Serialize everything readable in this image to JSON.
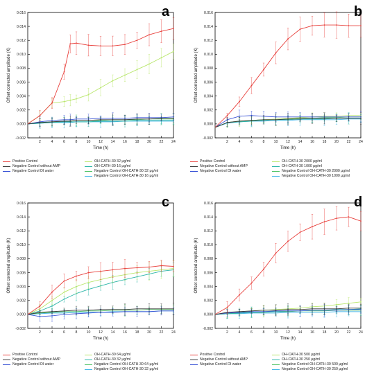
{
  "chart_data": [
    {
      "type": "line",
      "panel_label": "a",
      "xlabel": "Time (h)",
      "ylabel": "Offset corrected amplitude (K)",
      "xlim": [
        0,
        24
      ],
      "ylim": [
        -0.002,
        0.016
      ],
      "x_ticks": [
        2,
        4,
        6,
        8,
        10,
        12,
        14,
        16,
        18,
        20,
        22,
        24
      ],
      "y_ticks": [
        -0.002,
        0.0,
        0.002,
        0.004,
        0.006,
        0.008,
        0.01,
        0.012,
        0.014,
        0.016
      ],
      "y_tick_labels": [
        "-0.002",
        "0.000",
        "0.002",
        "0.004",
        "0.006",
        "0.008",
        "0.010",
        "0.012",
        "0.014",
        "0.016"
      ],
      "x": [
        0,
        2,
        4,
        6,
        7,
        8,
        10,
        12,
        14,
        16,
        18,
        20,
        22,
        24
      ],
      "series": [
        {
          "name": "Positive Control",
          "color": "#e8413d",
          "values": [
            0.0,
            0.0012,
            0.003,
            0.0075,
            0.0115,
            0.0116,
            0.0113,
            0.0112,
            0.0112,
            0.0114,
            0.012,
            0.0128,
            0.0133,
            0.0137
          ]
        },
        {
          "name": "Negative Control without AMP",
          "color": "#3a3a3a",
          "values": [
            0.0,
            0.0002,
            0.0003,
            0.0004,
            0.0004,
            0.0005,
            0.0005,
            0.0006,
            0.0006,
            0.0006,
            0.0007,
            0.0007,
            0.0008,
            0.0008
          ]
        },
        {
          "name": "Negative Control DI water",
          "color": "#3c55d6",
          "values": [
            0.0,
            0.0003,
            0.0005,
            0.0006,
            0.0006,
            0.0007,
            0.0007,
            0.0008,
            0.0008,
            0.0008,
            0.0009,
            0.0009,
            0.0009,
            0.001
          ]
        },
        {
          "name": "OH-CATH-30 32 μg/ml",
          "color": "#b8e66a",
          "values": [
            0.0,
            0.0012,
            0.003,
            0.0032,
            0.0034,
            0.0036,
            0.0042,
            0.0052,
            0.0062,
            0.007,
            0.0078,
            0.0086,
            0.0095,
            0.0104
          ]
        },
        {
          "name": "OH-CATH-30 16 μg/ml",
          "color": "#2bb5a8",
          "values": [
            0.0,
            0.0001,
            0.0002,
            0.0003,
            0.0003,
            0.0003,
            0.0003,
            0.0004,
            0.0004,
            0.0004,
            0.0005,
            0.0005,
            0.0005,
            0.0005
          ]
        },
        {
          "name": "Negative Control OH-CATH-30 32 μg/ml",
          "color": "#55c56a",
          "values": [
            0.0,
            0.0002,
            0.0003,
            0.0004,
            0.0004,
            0.0005,
            0.0005,
            0.0005,
            0.0006,
            0.0006,
            0.0006,
            0.0007,
            0.0007,
            0.0007
          ]
        },
        {
          "name": "Negative Control OH-CATH-30 16 μg/ml",
          "color": "#48b8e8",
          "values": [
            0.0,
            0.0001,
            0.0002,
            0.0002,
            0.0002,
            0.0003,
            0.0003,
            0.0003,
            0.0003,
            0.0004,
            0.0004,
            0.0004,
            0.0004,
            0.0004
          ]
        }
      ],
      "legend_layout": [
        [
          "Positive Control",
          "OH-CATH-30 32 μg/ml"
        ],
        [
          "Negative Control without AMP",
          "OH-CATH-30 16 μg/ml"
        ],
        [
          "Negative Control DI water",
          "Negative Control OH-CATH-30 32 μg/ml"
        ],
        [
          "",
          "Negative Control OH-CATH-30 16 μg/ml"
        ]
      ],
      "grid": false,
      "legend_position": "below"
    },
    {
      "type": "line",
      "panel_label": "b",
      "xlabel": "Time (h)",
      "ylabel": "Offset corrected amplitude (K)",
      "xlim": [
        0,
        24
      ],
      "ylim": [
        -0.002,
        0.016
      ],
      "x_ticks": [
        2,
        4,
        6,
        8,
        10,
        12,
        14,
        16,
        18,
        20,
        22,
        24
      ],
      "y_ticks": [
        -0.002,
        0.0,
        0.002,
        0.004,
        0.006,
        0.008,
        0.01,
        0.012,
        0.014,
        0.016
      ],
      "y_tick_labels": [
        "-0.002",
        "0.000",
        "0.002",
        "0.004",
        "0.006",
        "0.008",
        "0.010",
        "0.012",
        "0.014",
        "0.016"
      ],
      "x": [
        0,
        2,
        4,
        6,
        8,
        10,
        12,
        14,
        16,
        18,
        20,
        22,
        24
      ],
      "series": [
        {
          "name": "Positive Control",
          "color": "#e8413d",
          "values": [
            -0.0005,
            0.0012,
            0.0032,
            0.0055,
            0.0078,
            0.0102,
            0.0122,
            0.0136,
            0.0141,
            0.0142,
            0.0142,
            0.0141,
            0.0141
          ]
        },
        {
          "name": "Negative Control without AMP",
          "color": "#3a3a3a",
          "values": [
            -0.0005,
            0.0002,
            0.0004,
            0.0005,
            0.0006,
            0.0006,
            0.0007,
            0.0007,
            0.0008,
            0.0008,
            0.0008,
            0.0008,
            0.0008
          ]
        },
        {
          "name": "Negative Control DI water",
          "color": "#3c55d6",
          "values": [
            -0.0005,
            0.0006,
            0.0011,
            0.0012,
            0.0011,
            0.001,
            0.001,
            0.001,
            0.001,
            0.001,
            0.001,
            0.001,
            0.001
          ]
        },
        {
          "name": "OH-CATH-30 2000 μg/ml",
          "color": "#b8e66a",
          "values": [
            -0.0005,
            0.0002,
            0.0004,
            0.0005,
            0.0006,
            0.0007,
            0.0008,
            0.0009,
            0.001,
            0.0011,
            0.0011,
            0.0012,
            0.0012
          ]
        },
        {
          "name": "OH-CATH-30 1000 μg/ml",
          "color": "#2bb5a8",
          "values": [
            -0.0005,
            0.0002,
            0.0003,
            0.0004,
            0.0005,
            0.0006,
            0.0006,
            0.0007,
            0.0007,
            0.0007,
            0.0008,
            0.0008,
            0.0008
          ]
        },
        {
          "name": "Negative Control OH-CATH-30 2000 μg/ml",
          "color": "#55c56a",
          "values": [
            -0.0005,
            0.0002,
            0.0004,
            0.0005,
            0.0006,
            0.0006,
            0.0007,
            0.0008,
            0.0008,
            0.0009,
            0.0009,
            0.001,
            0.001
          ]
        },
        {
          "name": "Negative Control OH-CATH-30 1000 μg/ml",
          "color": "#48b8e8",
          "values": [
            -0.0005,
            0.0001,
            0.0003,
            0.0004,
            0.0004,
            0.0005,
            0.0005,
            0.0006,
            0.0006,
            0.0006,
            0.0006,
            0.0007,
            0.0007
          ]
        }
      ],
      "legend_layout": [
        [
          "Positive Control",
          "OH-CATH-30 2000 μg/ml"
        ],
        [
          "Negative Control without AMP",
          "OH-CATH-30 1000 μg/ml"
        ],
        [
          "Negative Control DI water",
          "Negative Control OH-CATH-30 2000 μg/ml"
        ],
        [
          "",
          "Negative Control OH-CATH-30 1000 μg/ml"
        ]
      ],
      "grid": false,
      "legend_position": "below"
    },
    {
      "type": "line",
      "panel_label": "c",
      "xlabel": "Time (h)",
      "ylabel": "Offset corrected amplitude (K)",
      "xlim": [
        0,
        24
      ],
      "ylim": [
        -0.002,
        0.016
      ],
      "x_ticks": [
        2,
        4,
        6,
        8,
        10,
        12,
        14,
        16,
        18,
        20,
        22,
        24
      ],
      "y_ticks": [
        -0.002,
        0.0,
        0.002,
        0.004,
        0.006,
        0.008,
        0.01,
        0.012,
        0.014,
        0.016
      ],
      "y_tick_labels": [
        "-0.002",
        "0.000",
        "0.002",
        "0.004",
        "0.006",
        "0.008",
        "0.010",
        "0.012",
        "0.014",
        "0.016"
      ],
      "x": [
        0,
        2,
        4,
        6,
        8,
        10,
        12,
        14,
        16,
        18,
        20,
        22,
        24
      ],
      "series": [
        {
          "name": "Positive Control",
          "color": "#e8413d",
          "values": [
            0.0,
            0.0012,
            0.0032,
            0.0048,
            0.0055,
            0.006,
            0.0062,
            0.0064,
            0.0066,
            0.0067,
            0.0068,
            0.007,
            0.0069
          ]
        },
        {
          "name": "Negative Control without AMP",
          "color": "#3a3a3a",
          "values": [
            0.0,
            0.0003,
            0.0004,
            0.0005,
            0.0006,
            0.0006,
            0.0007,
            0.0007,
            0.0007,
            0.0008,
            0.0008,
            0.0008,
            0.0008
          ]
        },
        {
          "name": "Negative Control DI water",
          "color": "#3c55d6",
          "values": [
            0.0,
            -0.0003,
            -0.0002,
            0.0,
            0.0001,
            0.0002,
            0.0003,
            0.0003,
            0.0004,
            0.0004,
            0.0004,
            0.0005,
            0.0005
          ]
        },
        {
          "name": "OH-CATH-30 64 μg/ml",
          "color": "#b8e66a",
          "values": [
            0.0,
            0.0008,
            0.002,
            0.0032,
            0.004,
            0.0046,
            0.005,
            0.0054,
            0.0057,
            0.006,
            0.0062,
            0.0064,
            0.0066
          ]
        },
        {
          "name": "OH-CATH-30 32 μg/ml",
          "color": "#2bb5a8",
          "values": [
            0.0,
            0.0005,
            0.0012,
            0.0022,
            0.003,
            0.0036,
            0.0041,
            0.0046,
            0.005,
            0.0054,
            0.0058,
            0.0062,
            0.0064
          ]
        },
        {
          "name": "Negative Control OH-CATH-30 64 μg/ml",
          "color": "#55c56a",
          "values": [
            0.0,
            0.0002,
            0.0003,
            0.0004,
            0.0004,
            0.0005,
            0.0005,
            0.0006,
            0.0006,
            0.0006,
            0.0007,
            0.0007,
            0.0007
          ]
        },
        {
          "name": "Negative Control OH-CATH-30 32 μg/ml",
          "color": "#48b8e8",
          "values": [
            0.0,
            0.0001,
            0.0002,
            0.0002,
            0.0003,
            0.0003,
            0.0003,
            0.0004,
            0.0004,
            0.0004,
            0.0004,
            0.0005,
            0.0005
          ]
        }
      ],
      "legend_layout": [
        [
          "Positive Control",
          "OH-CATH-30 64 μg/ml"
        ],
        [
          "Negative Control without AMP",
          "OH-CATH-30 32 μg/ml"
        ],
        [
          "Negative Control DI water",
          "Negative Control OH-CATH-30 64 μg/ml"
        ],
        [
          "",
          "Negative Control OH-CATH-30 32 μg/ml"
        ]
      ],
      "grid": false,
      "legend_position": "below"
    },
    {
      "type": "line",
      "panel_label": "d",
      "xlabel": "Time (h)",
      "ylabel": "Offset corrected amplitude (K)",
      "xlim": [
        0,
        24
      ],
      "ylim": [
        -0.002,
        0.016
      ],
      "x_ticks": [
        2,
        4,
        6,
        8,
        10,
        12,
        14,
        16,
        18,
        20,
        22,
        24
      ],
      "y_ticks": [
        -0.002,
        0.0,
        0.002,
        0.004,
        0.006,
        0.008,
        0.01,
        0.012,
        0.014,
        0.016
      ],
      "y_tick_labels": [
        "-0.002",
        "0.000",
        "0.002",
        "0.004",
        "0.006",
        "0.008",
        "0.010",
        "0.012",
        "0.014",
        "0.016"
      ],
      "x": [
        0,
        2,
        4,
        6,
        8,
        10,
        12,
        14,
        16,
        18,
        20,
        22,
        24
      ],
      "series": [
        {
          "name": "Positive Control",
          "color": "#e8413d",
          "values": [
            0.0,
            0.001,
            0.0028,
            0.0045,
            0.0065,
            0.0088,
            0.0105,
            0.0118,
            0.0126,
            0.0133,
            0.0138,
            0.014,
            0.0134
          ]
        },
        {
          "name": "Negative Control without AMP",
          "color": "#3a3a3a",
          "values": [
            0.0,
            0.0003,
            0.0004,
            0.0005,
            0.0006,
            0.0006,
            0.0007,
            0.0007,
            0.0008,
            0.0008,
            0.0008,
            0.0009,
            0.0009
          ]
        },
        {
          "name": "Negative Control DI water",
          "color": "#3c55d6",
          "values": [
            0.0,
            0.0002,
            0.0003,
            0.0004,
            0.0004,
            0.0005,
            0.0005,
            0.0005,
            0.0006,
            0.0006,
            0.0006,
            0.0007,
            0.0007
          ]
        },
        {
          "name": "OH-CATH-30 500 μg/ml",
          "color": "#b8e66a",
          "values": [
            0.0,
            0.0002,
            0.0004,
            0.0005,
            0.0006,
            0.0007,
            0.0008,
            0.0009,
            0.0011,
            0.0012,
            0.0014,
            0.0016,
            0.0018
          ]
        },
        {
          "name": "OH-CATH-30 250 μg/ml",
          "color": "#2bb5a8",
          "values": [
            0.0,
            0.0001,
            0.0002,
            0.0003,
            0.0004,
            0.0004,
            0.0005,
            0.0005,
            0.0006,
            0.0006,
            0.0007,
            0.0007,
            0.0008
          ]
        },
        {
          "name": "Negative Control OH-CATH-30 500 μg/ml",
          "color": "#55c56a",
          "values": [
            0.0,
            0.0001,
            0.0002,
            0.0003,
            0.0003,
            0.0004,
            0.0004,
            0.0005,
            0.0005,
            0.0005,
            0.0006,
            0.0006,
            0.0006
          ]
        },
        {
          "name": "Negative Control OH-CATH-30 250 μg/ml",
          "color": "#48b8e8",
          "values": [
            0.0,
            0.0001,
            0.0001,
            0.0002,
            0.0002,
            0.0002,
            0.0003,
            0.0003,
            0.0003,
            0.0003,
            0.0004,
            0.0004,
            0.0004
          ]
        }
      ],
      "legend_layout": [
        [
          "Positive Control",
          "OH-CATH-30 500 μg/ml"
        ],
        [
          "Negative Control without AMP",
          "OH-CATH-30 250 μg/ml"
        ],
        [
          "Negative Control DI water",
          "Negative Control OH-CATH-30 500 μg/ml"
        ],
        [
          "",
          "Negative Control OH-CATH-30 250 μg/ml"
        ]
      ],
      "grid": false,
      "legend_position": "below"
    }
  ]
}
